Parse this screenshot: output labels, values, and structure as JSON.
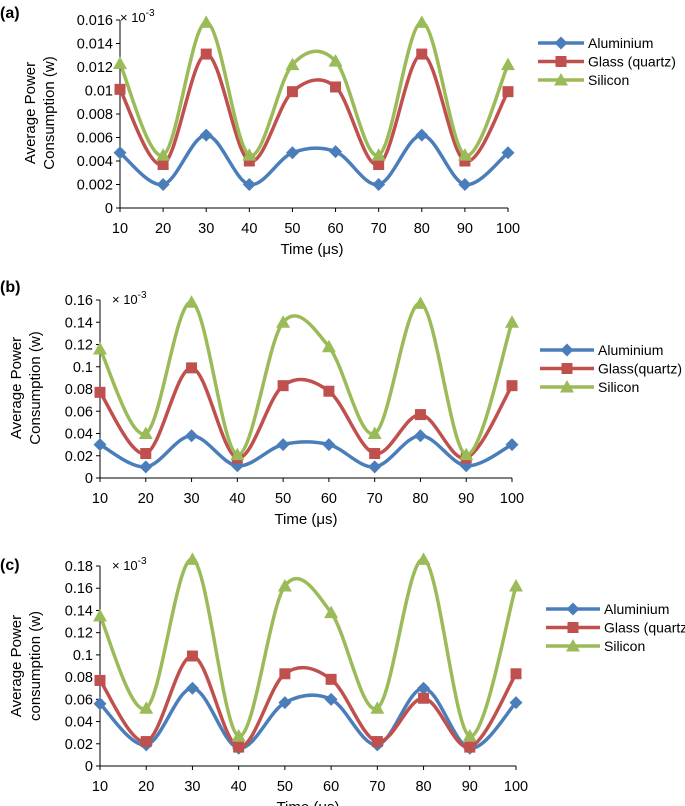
{
  "chart_data": [
    {
      "type": "line",
      "panel_label": "(a)",
      "multiplier": "× 10",
      "multiplier_exp": "-3",
      "xlabel": "Time (μs)",
      "ylabel": [
        "Average Power",
        "Consumption (w)"
      ],
      "x": [
        10,
        20,
        30,
        40,
        50,
        60,
        70,
        80,
        90,
        100
      ],
      "xlim": [
        10,
        100
      ],
      "ylim": [
        0,
        0.016
      ],
      "yticks": [
        0,
        0.002,
        0.004,
        0.006,
        0.008,
        0.01,
        0.012,
        0.014,
        0.016
      ],
      "ytick_labels": [
        "0",
        "0.002",
        "0.004",
        "0.006",
        "0.008",
        "0.01",
        "0.012",
        "0.014",
        "0.016"
      ],
      "series": [
        {
          "name": "Aluminium",
          "color": "#4a7ebb",
          "marker": "diamond",
          "values": [
            0.0047,
            0.002,
            0.0062,
            0.002,
            0.0047,
            0.0048,
            0.002,
            0.0062,
            0.002,
            0.0047
          ]
        },
        {
          "name": "Glass (quartz)",
          "color": "#c0504d",
          "marker": "square",
          "values": [
            0.0101,
            0.0037,
            0.0131,
            0.004,
            0.0099,
            0.0103,
            0.0037,
            0.0131,
            0.004,
            0.0099
          ]
        },
        {
          "name": "Silicon",
          "color": "#9bbb59",
          "marker": "triangle",
          "values": [
            0.0123,
            0.0045,
            0.0158,
            0.0045,
            0.0122,
            0.0125,
            0.0045,
            0.0158,
            0.0045,
            0.0122
          ]
        }
      ]
    },
    {
      "type": "line",
      "panel_label": "(b)",
      "multiplier": "× 10",
      "multiplier_exp": "-3",
      "xlabel": "Time (μs)",
      "ylabel": [
        "Average Power",
        "Consumption (w)"
      ],
      "x": [
        10,
        20,
        30,
        40,
        50,
        60,
        70,
        80,
        90,
        100
      ],
      "xlim": [
        10,
        100
      ],
      "ylim": [
        0,
        0.16
      ],
      "yticks": [
        0,
        0.02,
        0.04,
        0.06,
        0.08,
        0.1,
        0.12,
        0.14,
        0.16
      ],
      "ytick_labels": [
        "0",
        "0.02",
        "0.04",
        "0.06",
        "0.08",
        "0.1",
        "0.12",
        "0.14",
        "0.16"
      ],
      "series": [
        {
          "name": "Aluminium",
          "color": "#4a7ebb",
          "marker": "diamond",
          "values": [
            0.03,
            0.01,
            0.038,
            0.011,
            0.03,
            0.03,
            0.01,
            0.038,
            0.011,
            0.03
          ]
        },
        {
          "name": "Glass(quartz)",
          "color": "#c0504d",
          "marker": "square",
          "values": [
            0.077,
            0.022,
            0.099,
            0.018,
            0.083,
            0.078,
            0.022,
            0.057,
            0.018,
            0.083
          ]
        },
        {
          "name": "Silicon",
          "color": "#9bbb59",
          "marker": "triangle",
          "values": [
            0.116,
            0.04,
            0.158,
            0.021,
            0.14,
            0.118,
            0.04,
            0.157,
            0.021,
            0.14
          ]
        }
      ]
    },
    {
      "type": "line",
      "panel_label": "(c)",
      "multiplier": "× 10",
      "multiplier_exp": "-3",
      "xlabel": "Time (μs)",
      "ylabel": [
        "Average Power",
        "consumption (w)"
      ],
      "x": [
        10,
        20,
        30,
        40,
        50,
        60,
        70,
        80,
        90,
        100
      ],
      "xlim": [
        10,
        100
      ],
      "ylim": [
        0,
        0.18
      ],
      "yticks": [
        0,
        0.02,
        0.04,
        0.06,
        0.08,
        0.1,
        0.12,
        0.14,
        0.16,
        0.18
      ],
      "ytick_labels": [
        "0",
        "0.02",
        "0.04",
        "0.06",
        "0.08",
        "0.1",
        "0.12",
        "0.14",
        "0.16",
        "0.18"
      ],
      "series": [
        {
          "name": "Aluminium",
          "color": "#4a7ebb",
          "marker": "diamond",
          "values": [
            0.056,
            0.019,
            0.07,
            0.016,
            0.057,
            0.06,
            0.019,
            0.07,
            0.016,
            0.057
          ]
        },
        {
          "name": "Glass (quartz)",
          "color": "#c0504d",
          "marker": "square",
          "values": [
            0.077,
            0.022,
            0.099,
            0.017,
            0.083,
            0.078,
            0.022,
            0.061,
            0.017,
            0.083
          ]
        },
        {
          "name": "Silicon",
          "color": "#9bbb59",
          "marker": "triangle",
          "values": [
            0.135,
            0.052,
            0.186,
            0.027,
            0.162,
            0.138,
            0.052,
            0.186,
            0.027,
            0.162
          ]
        }
      ]
    }
  ]
}
